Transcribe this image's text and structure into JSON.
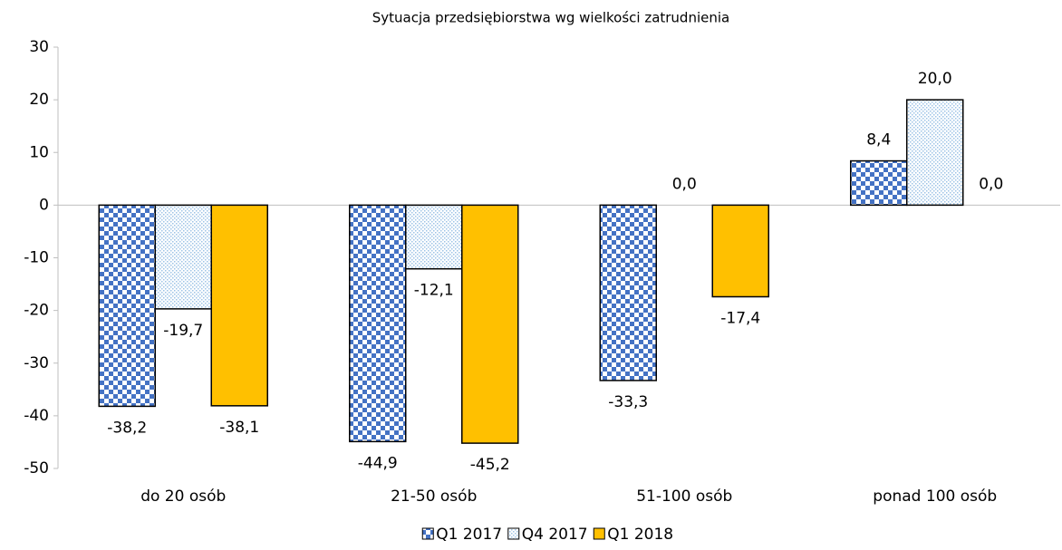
{
  "chart_data": {
    "type": "bar",
    "title": "Sytuacja przedsiębiorstwa wg wielkości zatrudnienia",
    "categories": [
      "do 20 osób",
      "21-50 osób",
      "51-100 osób",
      "ponad 100 osób"
    ],
    "series": [
      {
        "name": "Q1 2017",
        "color": "#4472c4",
        "pattern": "checker",
        "values": [
          -38.2,
          -44.9,
          -33.3,
          8.4
        ],
        "value_labels": [
          "-38,2",
          "-44,9",
          "-33,3",
          "8,4"
        ]
      },
      {
        "name": "Q4 2017",
        "color": "#9dc3e6",
        "pattern": "dots",
        "values": [
          -19.7,
          -12.1,
          0.0,
          20.0
        ],
        "value_labels": [
          "-19,7",
          "-12,1",
          "0,0",
          "20,0"
        ]
      },
      {
        "name": "Q1 2018",
        "color": "#ffc000",
        "pattern": "solid",
        "values": [
          -38.1,
          -45.2,
          -17.4,
          0.0
        ],
        "value_labels": [
          "-38,1",
          "-45,2",
          "-17,4",
          "0,0"
        ]
      }
    ],
    "ylim": [
      -50,
      30
    ],
    "yticks": [
      -50,
      -40,
      -30,
      -20,
      -10,
      0,
      10,
      20,
      30
    ],
    "grid": false,
    "legend": "bottom"
  }
}
